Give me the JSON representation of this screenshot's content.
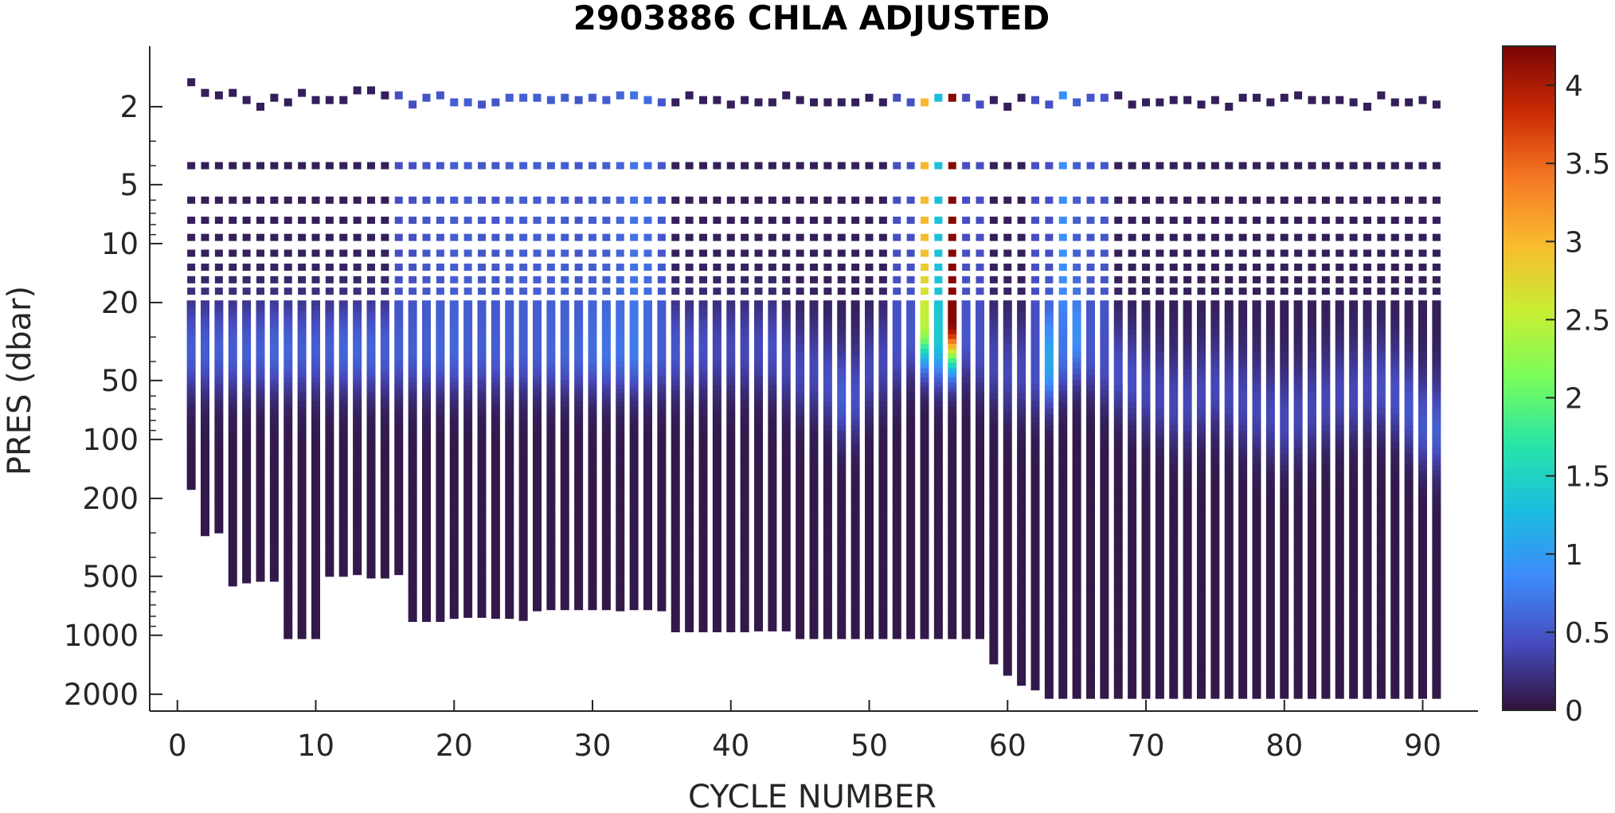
{
  "chart_data": {
    "type": "heatmap",
    "title": "2903886  CHLA ADJUSTED",
    "xlabel": "CYCLE NUMBER",
    "ylabel": "PRES (dbar)",
    "xlim": [
      -2,
      94
    ],
    "ylim": [
      1.3,
      2200
    ],
    "y_scale": "log",
    "y_reversed": true,
    "x_ticks": [
      0,
      10,
      20,
      30,
      40,
      50,
      60,
      70,
      80,
      90
    ],
    "x_tick_labels": [
      "0",
      "10",
      "20",
      "30",
      "40",
      "50",
      "60",
      "70",
      "80",
      "90"
    ],
    "y_ticks": [
      2,
      5,
      10,
      20,
      50,
      100,
      200,
      500,
      1000,
      2000
    ],
    "y_tick_labels": [
      "2",
      "5",
      "10",
      "20",
      "50",
      "100",
      "200",
      "500",
      "1000",
      "2000"
    ],
    "colorbar": {
      "colormap": "turbo",
      "clim": [
        0,
        4.25
      ],
      "ticks": [
        0,
        0.5,
        1,
        1.5,
        2,
        2.5,
        3,
        3.5,
        4
      ],
      "tick_labels": [
        "0",
        "0.5",
        "1",
        "1.5",
        "2",
        "2.5",
        "3",
        "3.5",
        "4"
      ]
    },
    "cycles": [
      1,
      2,
      3,
      4,
      5,
      6,
      7,
      8,
      9,
      10,
      11,
      12,
      13,
      14,
      15,
      16,
      17,
      18,
      19,
      20,
      21,
      22,
      23,
      24,
      25,
      26,
      27,
      28,
      29,
      30,
      31,
      32,
      33,
      34,
      35,
      36,
      37,
      38,
      39,
      40,
      41,
      42,
      43,
      44,
      45,
      46,
      47,
      48,
      49,
      50,
      51,
      52,
      53,
      54,
      55,
      56,
      57,
      58,
      59,
      60,
      61,
      62,
      63,
      64,
      65,
      66,
      67,
      68,
      69,
      70,
      71,
      72,
      73,
      74,
      75,
      76,
      77,
      78,
      79,
      80,
      81,
      82,
      83,
      84,
      85,
      86,
      87,
      88,
      89,
      90,
      91
    ],
    "profile_max_pressure": [
      180,
      310,
      300,
      560,
      540,
      530,
      530,
      1040,
      1040,
      1040,
      500,
      500,
      490,
      510,
      510,
      490,
      850,
      850,
      850,
      820,
      810,
      810,
      820,
      820,
      840,
      750,
      740,
      740,
      740,
      740,
      740,
      750,
      740,
      740,
      750,
      960,
      960,
      960,
      960,
      960,
      960,
      950,
      950,
      950,
      1040,
      1040,
      1040,
      1040,
      1040,
      1040,
      1040,
      1040,
      1040,
      1040,
      1040,
      1040,
      1040,
      1040,
      1400,
      1600,
      1800,
      1900,
      2100,
      2100,
      2100,
      2100,
      2100,
      2100,
      2100,
      2100,
      2100,
      2100,
      2100,
      2100,
      2100,
      2100,
      2100,
      2100,
      2100,
      2100,
      2100,
      2100,
      2100,
      2100,
      2100,
      2100,
      2100,
      2100,
      2100,
      2100,
      2100
    ],
    "surface_pressure": [
      1.5,
      1.7,
      1.75,
      1.7,
      1.85,
      2.0,
      1.8,
      1.9,
      1.7,
      1.85,
      1.85,
      1.85,
      1.65,
      1.65,
      1.75,
      1.75,
      1.95,
      1.8,
      1.75,
      1.9,
      1.9,
      1.95,
      1.9,
      1.8,
      1.8,
      1.8,
      1.85,
      1.8,
      1.85,
      1.8,
      1.85,
      1.75,
      1.75,
      1.85,
      1.9,
      1.9,
      1.75,
      1.85,
      1.85,
      1.95,
      1.85,
      1.9,
      1.9,
      1.75,
      1.85,
      1.9,
      1.9,
      1.9,
      1.9,
      1.8,
      1.9,
      1.8,
      1.9,
      1.9,
      1.8,
      1.8,
      1.8,
      1.95,
      1.85,
      2.0,
      1.8,
      1.85,
      1.95,
      1.75,
      1.9,
      1.8,
      1.8,
      1.75,
      1.95,
      1.9,
      1.9,
      1.85,
      1.85,
      1.95,
      1.85,
      2.0,
      1.8,
      1.8,
      1.9,
      1.8,
      1.75,
      1.85,
      1.85,
      1.85,
      1.9,
      2.0,
      1.75,
      1.9,
      1.9,
      1.85,
      1.95
    ],
    "discrete_levels": [
      4.0,
      6.0,
      7.6,
      9.3,
      11.2,
      13.2,
      15.3,
      17.5
    ],
    "background_chla": 0.05,
    "dcm_pressure": [
      35,
      35,
      35,
      35,
      35,
      35,
      35,
      35,
      35,
      35,
      35,
      35,
      35,
      35,
      35,
      35,
      35,
      35,
      35,
      35,
      35,
      35,
      35,
      35,
      35,
      35,
      35,
      35,
      35,
      35,
      35,
      35,
      35,
      35,
      35,
      35,
      35,
      35,
      35,
      35,
      35,
      35,
      35,
      40,
      45,
      45,
      50,
      60,
      60,
      45,
      40,
      35,
      30,
      25,
      30,
      25,
      30,
      35,
      40,
      45,
      45,
      45,
      40,
      35,
      30,
      35,
      40,
      45,
      50,
      55,
      60,
      65,
      65,
      60,
      55,
      60,
      65,
      70,
      75,
      80,
      75,
      70,
      65,
      60,
      60,
      55,
      55,
      60,
      70,
      85,
      90
    ],
    "dcm_chla": [
      0.55,
      0.55,
      0.55,
      0.55,
      0.55,
      0.55,
      0.6,
      0.6,
      0.55,
      0.55,
      0.55,
      0.6,
      0.6,
      0.6,
      0.55,
      0.55,
      0.55,
      0.55,
      0.6,
      0.6,
      0.55,
      0.55,
      0.55,
      0.55,
      0.55,
      0.55,
      0.6,
      0.6,
      0.6,
      0.65,
      0.7,
      0.7,
      0.75,
      0.65,
      0.55,
      0.5,
      0.45,
      0.45,
      0.4,
      0.4,
      0.4,
      0.4,
      0.45,
      0.4,
      0.4,
      0.4,
      0.45,
      0.55,
      0.45,
      0.4,
      0.4,
      0.45,
      0.5,
      2.5,
      1.4,
      4.2,
      0.5,
      0.45,
      0.4,
      0.4,
      0.4,
      0.45,
      1.1,
      0.7,
      0.9,
      0.5,
      0.45,
      0.45,
      0.45,
      0.4,
      0.4,
      0.4,
      0.4,
      0.4,
      0.4,
      0.4,
      0.4,
      0.4,
      0.4,
      0.4,
      0.4,
      0.4,
      0.4,
      0.4,
      0.4,
      0.4,
      0.45,
      0.45,
      0.5,
      0.5,
      0.55
    ],
    "surface_chla": [
      0.1,
      0.1,
      0.1,
      0.1,
      0.1,
      0.1,
      0.1,
      0.1,
      0.1,
      0.1,
      0.1,
      0.1,
      0.1,
      0.1,
      0.1,
      0.45,
      0.45,
      0.5,
      0.5,
      0.55,
      0.55,
      0.5,
      0.5,
      0.55,
      0.55,
      0.55,
      0.55,
      0.55,
      0.5,
      0.55,
      0.55,
      0.6,
      0.7,
      0.65,
      0.5,
      0.1,
      0.1,
      0.1,
      0.1,
      0.1,
      0.1,
      0.1,
      0.1,
      0.1,
      0.1,
      0.1,
      0.1,
      0.1,
      0.1,
      0.1,
      0.1,
      0.45,
      0.45,
      3.0,
      1.3,
      4.2,
      0.45,
      0.45,
      0.1,
      0.1,
      0.1,
      0.45,
      0.45,
      0.9,
      0.55,
      0.5,
      0.5,
      0.1,
      0.1,
      0.1,
      0.1,
      0.1,
      0.1,
      0.1,
      0.1,
      0.1,
      0.1,
      0.1,
      0.1,
      0.1,
      0.1,
      0.1,
      0.1,
      0.1,
      0.1,
      0.1,
      0.1,
      0.1,
      0.1,
      0.1,
      0.1
    ]
  }
}
